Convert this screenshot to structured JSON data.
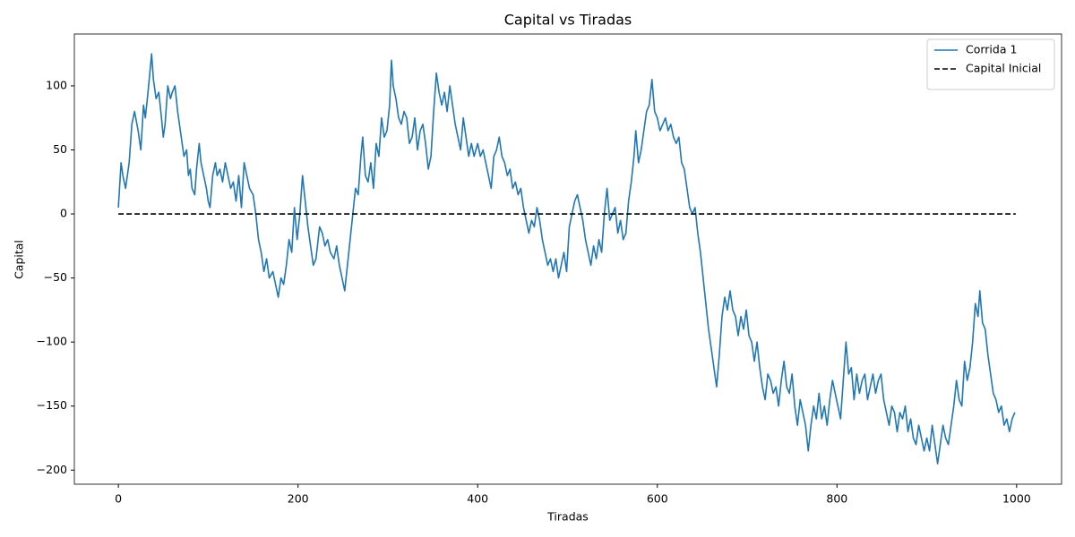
{
  "chart_data": {
    "type": "line",
    "title": "Capital vs Tiradas",
    "x_label": "Tiradas",
    "y_label": "Capital",
    "xlim": [
      -49,
      1050
    ],
    "ylim": [
      -211,
      140.5
    ],
    "xticks": [
      0,
      200,
      400,
      600,
      800,
      1000
    ],
    "yticks": [
      {
        "value": -200,
        "label": "−200"
      },
      {
        "value": -150,
        "label": "−150"
      },
      {
        "value": -100,
        "label": "−100"
      },
      {
        "value": -50,
        "label": "−50"
      },
      0,
      50,
      100
    ],
    "grid": false,
    "legend": "upper right",
    "series": [
      {
        "name": "Corrida 1",
        "color": "#1f77b4",
        "linestyle": "solid",
        "x": [
          0,
          3,
          5,
          8,
          12,
          15,
          18,
          22,
          25,
          28,
          30,
          33,
          35,
          37,
          39,
          42,
          45,
          48,
          50,
          52,
          55,
          58,
          60,
          63,
          66,
          70,
          73,
          76,
          78,
          80,
          82,
          85,
          87,
          90,
          92,
          95,
          98,
          100,
          102,
          105,
          108,
          110,
          113,
          116,
          119,
          122,
          125,
          128,
          131,
          134,
          137,
          140,
          143,
          146,
          150,
          153,
          156,
          159,
          162,
          165,
          168,
          172,
          175,
          178,
          181,
          184,
          187,
          190,
          193,
          196,
          199,
          202,
          205,
          208,
          211,
          214,
          217,
          220,
          224,
          227,
          230,
          233,
          236,
          240,
          243,
          246,
          249,
          252,
          255,
          258,
          261,
          264,
          267,
          270,
          272,
          275,
          278,
          281,
          284,
          287,
          290,
          293,
          296,
          299,
          302,
          304,
          306,
          309,
          312,
          315,
          318,
          321,
          324,
          327,
          330,
          333,
          336,
          339,
          342,
          345,
          348,
          351,
          354,
          357,
          360,
          363,
          366,
          369,
          372,
          375,
          378,
          381,
          384,
          387,
          390,
          393,
          396,
          400,
          403,
          406,
          409,
          412,
          415,
          418,
          421,
          424,
          427,
          430,
          433,
          436,
          439,
          442,
          445,
          448,
          451,
          454,
          457,
          460,
          463,
          466,
          469,
          472,
          475,
          478,
          481,
          484,
          487,
          490,
          493,
          496,
          499,
          502,
          505,
          508,
          511,
          514,
          517,
          520,
          523,
          526,
          529,
          532,
          535,
          538,
          541,
          544,
          547,
          550,
          553,
          556,
          559,
          562,
          565,
          568,
          571,
          574,
          576,
          579,
          582,
          585,
          588,
          591,
          594,
          597,
          600,
          603,
          606,
          609,
          612,
          615,
          618,
          621,
          624,
          627,
          630,
          633,
          636,
          639,
          642,
          645,
          648,
          651,
          654,
          657,
          660,
          663,
          666,
          669,
          672,
          675,
          678,
          681,
          684,
          687,
          690,
          693,
          696,
          699,
          702,
          705,
          708,
          711,
          714,
          717,
          720,
          723,
          726,
          729,
          732,
          735,
          738,
          741,
          744,
          747,
          750,
          753,
          756,
          759,
          762,
          765,
          768,
          771,
          774,
          777,
          780,
          783,
          786,
          789,
          792,
          795,
          798,
          801,
          804,
          807,
          810,
          813,
          816,
          819,
          822,
          825,
          828,
          831,
          834,
          837,
          840,
          843,
          846,
          849,
          852,
          855,
          858,
          861,
          864,
          867,
          870,
          873,
          876,
          879,
          882,
          885,
          888,
          891,
          894,
          897,
          900,
          903,
          906,
          909,
          912,
          915,
          918,
          921,
          924,
          927,
          930,
          933,
          936,
          939,
          942,
          945,
          948,
          951,
          954,
          957,
          959,
          962,
          965,
          968,
          971,
          974,
          977,
          980,
          983,
          986,
          989,
          992,
          995,
          998
        ],
        "values": [
          5,
          40,
          30,
          20,
          40,
          70,
          80,
          65,
          50,
          85,
          75,
          95,
          110,
          125,
          105,
          90,
          95,
          75,
          60,
          70,
          100,
          90,
          95,
          100,
          80,
          60,
          45,
          50,
          30,
          35,
          20,
          15,
          35,
          55,
          40,
          30,
          20,
          10,
          5,
          30,
          40,
          30,
          35,
          25,
          40,
          30,
          20,
          25,
          10,
          30,
          5,
          40,
          30,
          20,
          15,
          0,
          -20,
          -30,
          -45,
          -35,
          -50,
          -45,
          -55,
          -65,
          -50,
          -55,
          -40,
          -20,
          -30,
          5,
          -20,
          0,
          30,
          10,
          -10,
          -25,
          -40,
          -35,
          -10,
          -15,
          -25,
          -20,
          -30,
          -35,
          -25,
          -40,
          -50,
          -60,
          -40,
          -20,
          0,
          20,
          15,
          45,
          60,
          30,
          25,
          40,
          20,
          55,
          45,
          75,
          60,
          65,
          85,
          120,
          100,
          90,
          75,
          70,
          80,
          75,
          55,
          60,
          75,
          50,
          65,
          70,
          55,
          35,
          45,
          80,
          110,
          95,
          85,
          95,
          80,
          100,
          85,
          70,
          60,
          50,
          75,
          60,
          45,
          55,
          45,
          55,
          45,
          50,
          40,
          30,
          20,
          45,
          50,
          60,
          45,
          40,
          30,
          35,
          20,
          25,
          15,
          20,
          5,
          -5,
          -15,
          -5,
          -10,
          5,
          -5,
          -20,
          -30,
          -40,
          -35,
          -45,
          -35,
          -50,
          -40,
          -30,
          -45,
          -10,
          0,
          10,
          15,
          5,
          -5,
          -20,
          -30,
          -40,
          -25,
          -35,
          -20,
          -30,
          0,
          20,
          -5,
          0,
          5,
          -15,
          -5,
          -20,
          -15,
          10,
          25,
          45,
          65,
          40,
          50,
          65,
          80,
          85,
          105,
          80,
          75,
          65,
          70,
          75,
          65,
          70,
          60,
          55,
          60,
          40,
          35,
          20,
          5,
          0,
          5,
          -15,
          -30,
          -50,
          -70,
          -90,
          -105,
          -120,
          -135,
          -110,
          -80,
          -65,
          -75,
          -60,
          -75,
          -80,
          -95,
          -80,
          -90,
          -75,
          -95,
          -100,
          -115,
          -100,
          -120,
          -135,
          -145,
          -125,
          -130,
          -140,
          -135,
          -150,
          -130,
          -115,
          -135,
          -140,
          -125,
          -150,
          -165,
          -145,
          -155,
          -165,
          -185,
          -165,
          -150,
          -160,
          -140,
          -160,
          -150,
          -165,
          -145,
          -130,
          -140,
          -150,
          -160,
          -130,
          -100,
          -125,
          -120,
          -145,
          -125,
          -140,
          -130,
          -125,
          -145,
          -135,
          -125,
          -140,
          -130,
          -125,
          -145,
          -155,
          -165,
          -150,
          -155,
          -170,
          -155,
          -160,
          -150,
          -170,
          -160,
          -175,
          -180,
          -165,
          -175,
          -185,
          -175,
          -185,
          -165,
          -180,
          -195,
          -180,
          -165,
          -175,
          -180,
          -165,
          -150,
          -130,
          -145,
          -150,
          -115,
          -130,
          -120,
          -100,
          -70,
          -80,
          -60,
          -85,
          -90,
          -110,
          -125,
          -140,
          -145,
          -155,
          -150,
          -165,
          -160,
          -170,
          -160,
          -155
        ]
      },
      {
        "name": "Capital Inicial",
        "color": "#000000",
        "linestyle": "dashed",
        "x": [
          0,
          999
        ],
        "values": [
          0,
          0
        ]
      }
    ]
  }
}
